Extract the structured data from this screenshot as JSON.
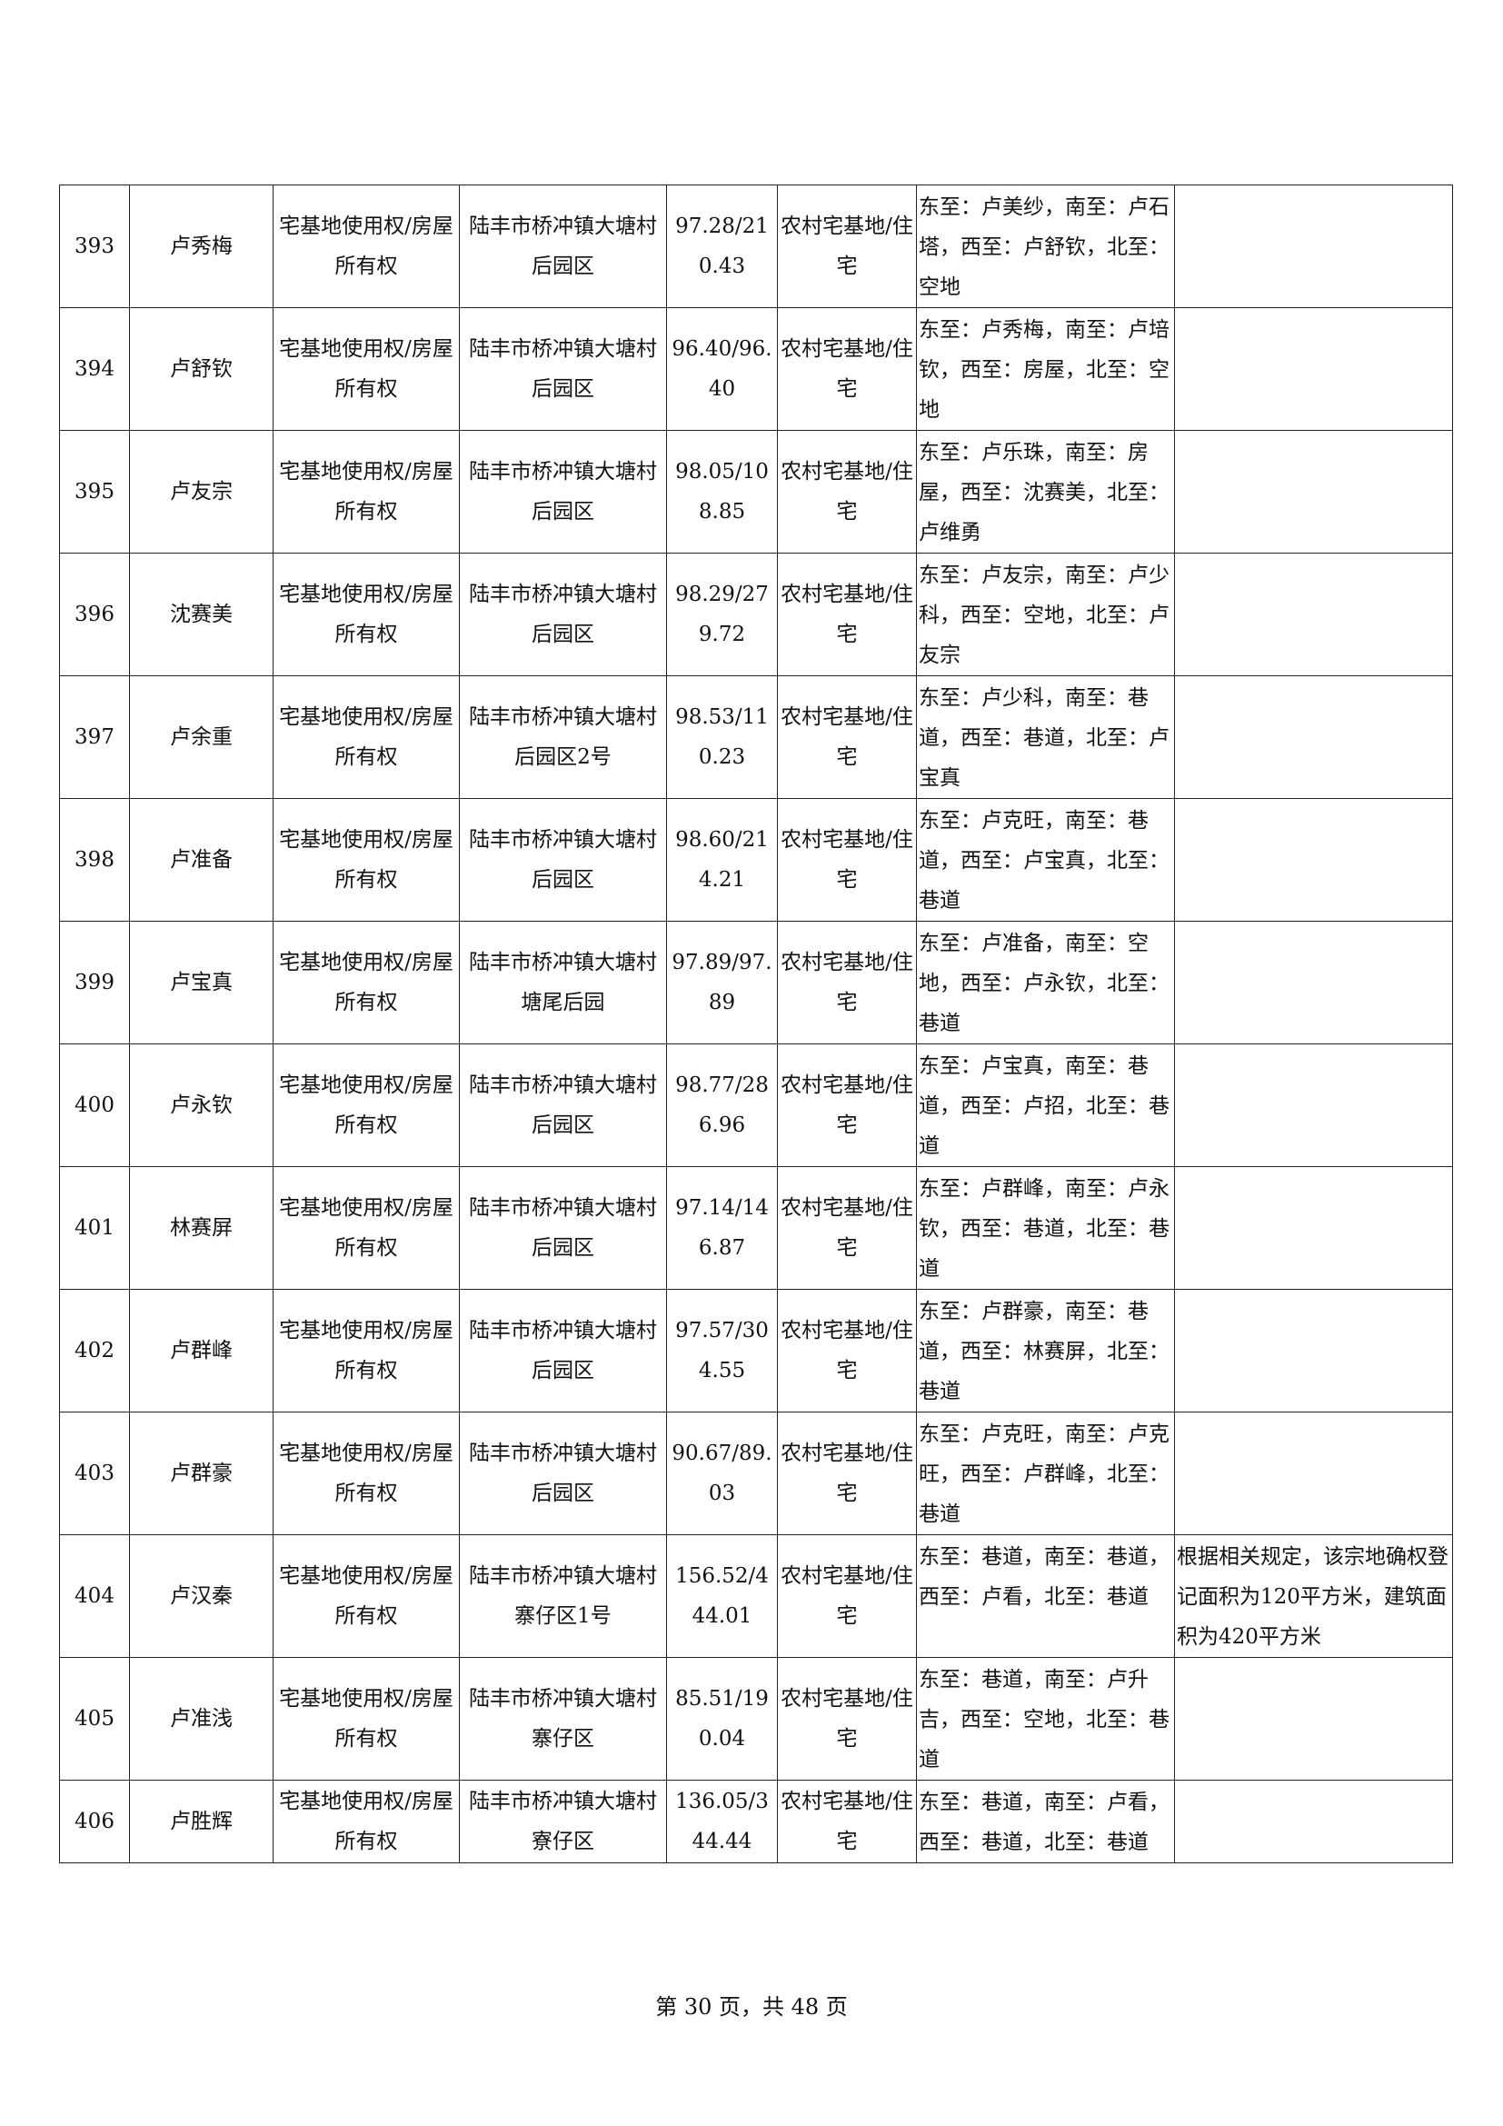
{
  "table": {
    "rows": [
      {
        "no": "393",
        "name": "卢秀梅",
        "right_type": "宅基地使用权/房屋所有权",
        "location": "陆丰市桥冲镇大塘村后园区",
        "area": "97.28/210.43",
        "usage": "农村宅基地/住宅",
        "boundaries": "东至：卢美纱，南至：卢石塔，西至：卢舒钦，北至：空地",
        "remark": ""
      },
      {
        "no": "394",
        "name": "卢舒钦",
        "right_type": "宅基地使用权/房屋所有权",
        "location": "陆丰市桥冲镇大塘村后园区",
        "area": "96.40/96.40",
        "usage": "农村宅基地/住宅",
        "boundaries": "东至：卢秀梅，南至：卢培钦，西至：房屋，北至：空地",
        "remark": ""
      },
      {
        "no": "395",
        "name": "卢友宗",
        "right_type": "宅基地使用权/房屋所有权",
        "location": "陆丰市桥冲镇大塘村后园区",
        "area": "98.05/108.85",
        "usage": "农村宅基地/住宅",
        "boundaries": "东至：卢乐珠，南至：房屋，西至：沈赛美，北至：卢维勇",
        "remark": ""
      },
      {
        "no": "396",
        "name": "沈赛美",
        "right_type": "宅基地使用权/房屋所有权",
        "location": "陆丰市桥冲镇大塘村后园区",
        "area": "98.29/279.72",
        "usage": "农村宅基地/住宅",
        "boundaries": "东至：卢友宗，南至：卢少科，西至：空地，北至：卢友宗",
        "remark": ""
      },
      {
        "no": "397",
        "name": "卢余重",
        "right_type": "宅基地使用权/房屋所有权",
        "location": "陆丰市桥冲镇大塘村后园区2号",
        "area": "98.53/110.23",
        "usage": "农村宅基地/住宅",
        "boundaries": "东至：卢少科，南至：巷道，西至：巷道，北至：卢宝真",
        "remark": ""
      },
      {
        "no": "398",
        "name": "卢准备",
        "right_type": "宅基地使用权/房屋所有权",
        "location": "陆丰市桥冲镇大塘村后园区",
        "area": "98.60/214.21",
        "usage": "农村宅基地/住宅",
        "boundaries": "东至：卢克旺，南至：巷道，西至：卢宝真，北至：巷道",
        "remark": ""
      },
      {
        "no": "399",
        "name": "卢宝真",
        "right_type": "宅基地使用权/房屋所有权",
        "location": "陆丰市桥冲镇大塘村塘尾后园",
        "area": "97.89/97.89",
        "usage": "农村宅基地/住宅",
        "boundaries": "东至：卢准备，南至：空地，西至：卢永钦，北至：巷道",
        "remark": ""
      },
      {
        "no": "400",
        "name": "卢永钦",
        "right_type": "宅基地使用权/房屋所有权",
        "location": "陆丰市桥冲镇大塘村后园区",
        "area": "98.77/286.96",
        "usage": "农村宅基地/住宅",
        "boundaries": "东至：卢宝真，南至：巷道，西至：卢招，北至：巷道",
        "remark": ""
      },
      {
        "no": "401",
        "name": "林赛屏",
        "right_type": "宅基地使用权/房屋所有权",
        "location": "陆丰市桥冲镇大塘村后园区",
        "area": "97.14/146.87",
        "usage": "农村宅基地/住宅",
        "boundaries": "东至：卢群峰，南至：卢永钦，西至：巷道，北至：巷道",
        "remark": ""
      },
      {
        "no": "402",
        "name": "卢群峰",
        "right_type": "宅基地使用权/房屋所有权",
        "location": "陆丰市桥冲镇大塘村后园区",
        "area": "97.57/304.55",
        "usage": "农村宅基地/住宅",
        "boundaries": "东至：卢群豪，南至：巷道，西至：林赛屏，北至：巷道",
        "remark": ""
      },
      {
        "no": "403",
        "name": "卢群豪",
        "right_type": "宅基地使用权/房屋所有权",
        "location": "陆丰市桥冲镇大塘村后园区",
        "area": "90.67/89.03",
        "usage": "农村宅基地/住宅",
        "boundaries": "东至：卢克旺，南至：卢克旺，西至：卢群峰，北至：巷道",
        "remark": ""
      },
      {
        "no": "404",
        "name": "卢汉秦",
        "right_type": "宅基地使用权/房屋所有权",
        "location": "陆丰市桥冲镇大塘村寨仔区1号",
        "area": "156.52/444.01",
        "usage": "农村宅基地/住宅",
        "boundaries": "东至：巷道，南至：巷道，西至：卢看，北至：巷道",
        "remark": "根据相关规定，该宗地确权登记面积为120平方米，建筑面积为420平方米"
      },
      {
        "no": "405",
        "name": "卢准浅",
        "right_type": "宅基地使用权/房屋所有权",
        "location": "陆丰市桥冲镇大塘村寨仔区",
        "area": "85.51/190.04",
        "usage": "农村宅基地/住宅",
        "boundaries": "东至：巷道，南至：卢升吉，西至：空地，北至：巷道",
        "remark": ""
      },
      {
        "no": "406",
        "name": "卢胜辉",
        "right_type": "宅基地使用权/房屋所有权",
        "location": "陆丰市桥冲镇大塘村寮仔区",
        "area": "136.05/344.44",
        "usage": "农村宅基地/住宅",
        "boundaries": "东至：巷道，南至：卢看，西至：巷道，北至：巷道",
        "remark": ""
      }
    ]
  },
  "footer": {
    "page_text": "第 30 页，共 48 页"
  }
}
